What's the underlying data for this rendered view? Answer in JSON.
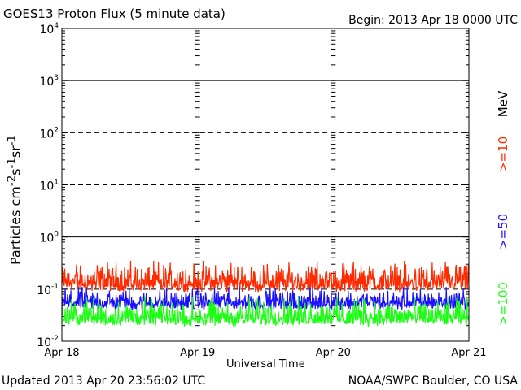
{
  "header": {
    "title": "GOES13 Proton Flux (5 minute data)",
    "begin": "Begin: 2013 Apr 18 0000 UTC"
  },
  "footer": {
    "updated": "Updated 2013 Apr 20 23:56:02 UTC",
    "credit": "NOAA/SWPC Boulder, CO USA"
  },
  "colors": {
    "ge10": "#ff2a00",
    "ge50": "#1a10ff",
    "ge100": "#19ff10",
    "axis": "#000000"
  },
  "chart_data": {
    "type": "line",
    "title": "GOES13 Proton Flux (5 minute data)",
    "xlabel": "Universal Time",
    "ylabel": "Particles cm⁻²s⁻¹sr⁻¹",
    "yscale": "log",
    "ylim": [
      0.01,
      10000
    ],
    "yticks": [
      {
        "value": 0.01,
        "base": "10",
        "exp": "-2"
      },
      {
        "value": 0.1,
        "base": "10",
        "exp": "-1"
      },
      {
        "value": 1,
        "base": "10",
        "exp": "0"
      },
      {
        "value": 10,
        "base": "10",
        "exp": "1"
      },
      {
        "value": 100,
        "base": "10",
        "exp": "2"
      },
      {
        "value": 1000,
        "base": "10",
        "exp": "3"
      },
      {
        "value": 10000,
        "base": "10",
        "exp": "4"
      }
    ],
    "xlim": [
      0,
      3
    ],
    "xticks": [
      {
        "value": 0,
        "label": "Apr 18"
      },
      {
        "value": 1,
        "label": "Apr 19"
      },
      {
        "value": 2,
        "label": "Apr 20"
      },
      {
        "value": 3,
        "label": "Apr 21"
      }
    ],
    "grid": {
      "solid": [
        1,
        1000
      ],
      "dashed": [
        0.1,
        10,
        100
      ]
    },
    "legend_title": "MeV",
    "legend_position": "right",
    "series": [
      {
        "name": ">=10",
        "color": "#ff2a00",
        "baseline": 0.1,
        "min": 0.08,
        "max": 0.35
      },
      {
        "name": ">=50",
        "color": "#1a10ff",
        "baseline": 0.045,
        "min": 0.03,
        "max": 0.11
      },
      {
        "name": ">=100",
        "color": "#19ff10",
        "baseline": 0.022,
        "min": 0.017,
        "max": 0.07
      }
    ]
  }
}
